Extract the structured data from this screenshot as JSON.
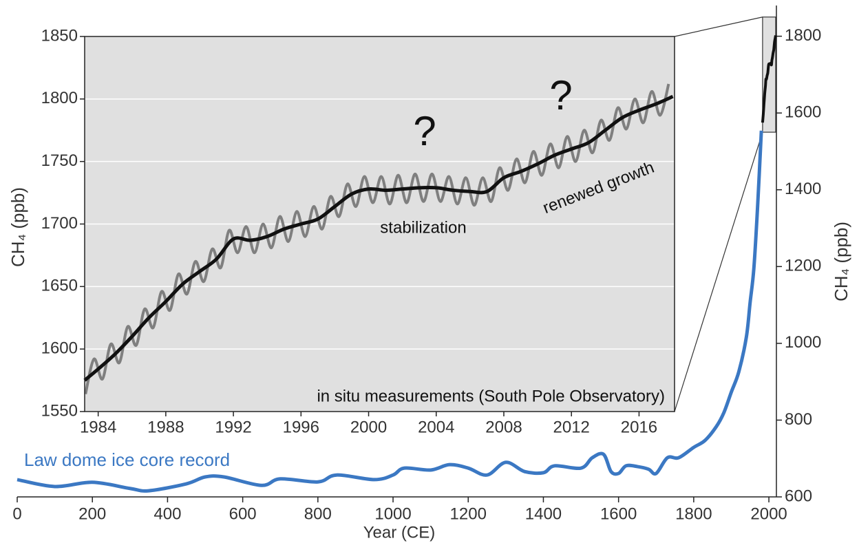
{
  "chart_data": [
    {
      "type": "line",
      "xlabel": "Year (CE)",
      "ylabel": "CH₄ (ppb)",
      "annotation": "Law dome ice core record",
      "xlim": [
        0,
        2020
      ],
      "ylim": [
        600,
        1880
      ],
      "xticks": [
        0,
        200,
        400,
        600,
        800,
        1000,
        1200,
        1400,
        1600,
        1800,
        2000
      ],
      "yticks": [
        600,
        800,
        1000,
        1200,
        1400,
        1600,
        1800
      ],
      "series": [
        {
          "color": "#3b78c3",
          "x": [
            0,
            100,
            200,
            300,
            350,
            450,
            500,
            550,
            650,
            700,
            800,
            850,
            950,
            1000,
            1030,
            1100,
            1150,
            1200,
            1250,
            1300,
            1350,
            1400,
            1430,
            1500,
            1530,
            1560,
            1580,
            1600,
            1620,
            1650,
            1680,
            1700,
            1730,
            1760,
            1800,
            1830,
            1860,
            1880,
            1900,
            1920,
            1940,
            1950,
            1960,
            1970,
            1980
          ],
          "values": [
            645,
            627,
            638,
            622,
            616,
            634,
            652,
            652,
            630,
            647,
            639,
            657,
            645,
            657,
            675,
            670,
            684,
            675,
            657,
            690,
            666,
            663,
            681,
            675,
            702,
            711,
            666,
            661,
            681,
            679,
            672,
            661,
            702,
            702,
            729,
            747,
            783,
            819,
            873,
            926,
            1016,
            1106,
            1195,
            1357,
            1554
          ]
        }
      ]
    },
    {
      "type": "line",
      "ylabel": "CH₄ (ppb)",
      "annotations": [
        "?",
        "?",
        "stabilization",
        "renewed growth",
        "in situ measurements (South Pole Observatory)"
      ],
      "xlim": [
        1983.2,
        2018.1
      ],
      "ylim": [
        1550,
        1850
      ],
      "xticks": [
        1984,
        1988,
        1992,
        1996,
        2000,
        2004,
        2008,
        2012,
        2016
      ],
      "yticks": [
        1550,
        1600,
        1650,
        1700,
        1750,
        1800,
        1850
      ],
      "grid": true,
      "background": "#e0e0e0",
      "series": [
        {
          "color": "#111111",
          "x": [
            1983.2,
            1984,
            1985,
            1986,
            1987,
            1988,
            1989,
            1990,
            1991,
            1992,
            1993,
            1994,
            1995,
            1996,
            1997,
            1998,
            1999,
            2000,
            2001,
            2002,
            2003,
            2004,
            2005,
            2006,
            2007,
            2008,
            2009,
            2010,
            2011,
            2012,
            2013,
            2014,
            2015,
            2016,
            2017,
            2018
          ],
          "values": [
            1575,
            1584,
            1596,
            1610,
            1625,
            1638,
            1652,
            1662,
            1672,
            1688,
            1687,
            1690,
            1696,
            1700,
            1704,
            1714,
            1724,
            1728,
            1727,
            1728,
            1729,
            1729,
            1727,
            1726,
            1726,
            1737,
            1742,
            1748,
            1755,
            1760,
            1765,
            1775,
            1785,
            1791,
            1796,
            1802
          ]
        },
        {
          "color": "#7f7f7f",
          "x": [
            1983.25,
            1983.75,
            1984.25,
            1984.75,
            1985.25,
            1985.75,
            1986.25,
            1986.75,
            1987.25,
            1987.75,
            1988.25,
            1988.75,
            1989.25,
            1989.75,
            1990.25,
            1990.75,
            1991.25,
            1991.75,
            1992.25,
            1992.75,
            1993.25,
            1993.75,
            1994.25,
            1994.75,
            1995.25,
            1995.75,
            1996.25,
            1996.75,
            1997.25,
            1997.75,
            1998.25,
            1998.75,
            1999.25,
            1999.75,
            2000.25,
            2000.75,
            2001.25,
            2001.75,
            2002.25,
            2002.75,
            2003.25,
            2003.75,
            2004.25,
            2004.75,
            2005.25,
            2005.75,
            2006.25,
            2006.75,
            2007.25,
            2007.75,
            2008.25,
            2008.75,
            2009.25,
            2009.75,
            2010.25,
            2010.75,
            2011.25,
            2011.75,
            2012.25,
            2012.75,
            2013.25,
            2013.75,
            2014.25,
            2014.75,
            2015.25,
            2015.75,
            2016.25,
            2016.75,
            2017.25,
            2017.75
          ],
          "values": [
            1564,
            1592,
            1576,
            1604,
            1589,
            1618,
            1603,
            1632,
            1617,
            1646,
            1631,
            1660,
            1644,
            1670,
            1654,
            1680,
            1665,
            1695,
            1677,
            1698,
            1677,
            1700,
            1681,
            1706,
            1686,
            1710,
            1690,
            1714,
            1696,
            1722,
            1706,
            1732,
            1714,
            1738,
            1717,
            1738,
            1716,
            1739,
            1717,
            1740,
            1718,
            1740,
            1718,
            1738,
            1716,
            1737,
            1715,
            1737,
            1718,
            1745,
            1727,
            1752,
            1733,
            1758,
            1739,
            1764,
            1745,
            1770,
            1750,
            1775,
            1757,
            1783,
            1767,
            1793,
            1776,
            1800,
            1781,
            1806,
            1787,
            1812
          ]
        }
      ]
    }
  ]
}
